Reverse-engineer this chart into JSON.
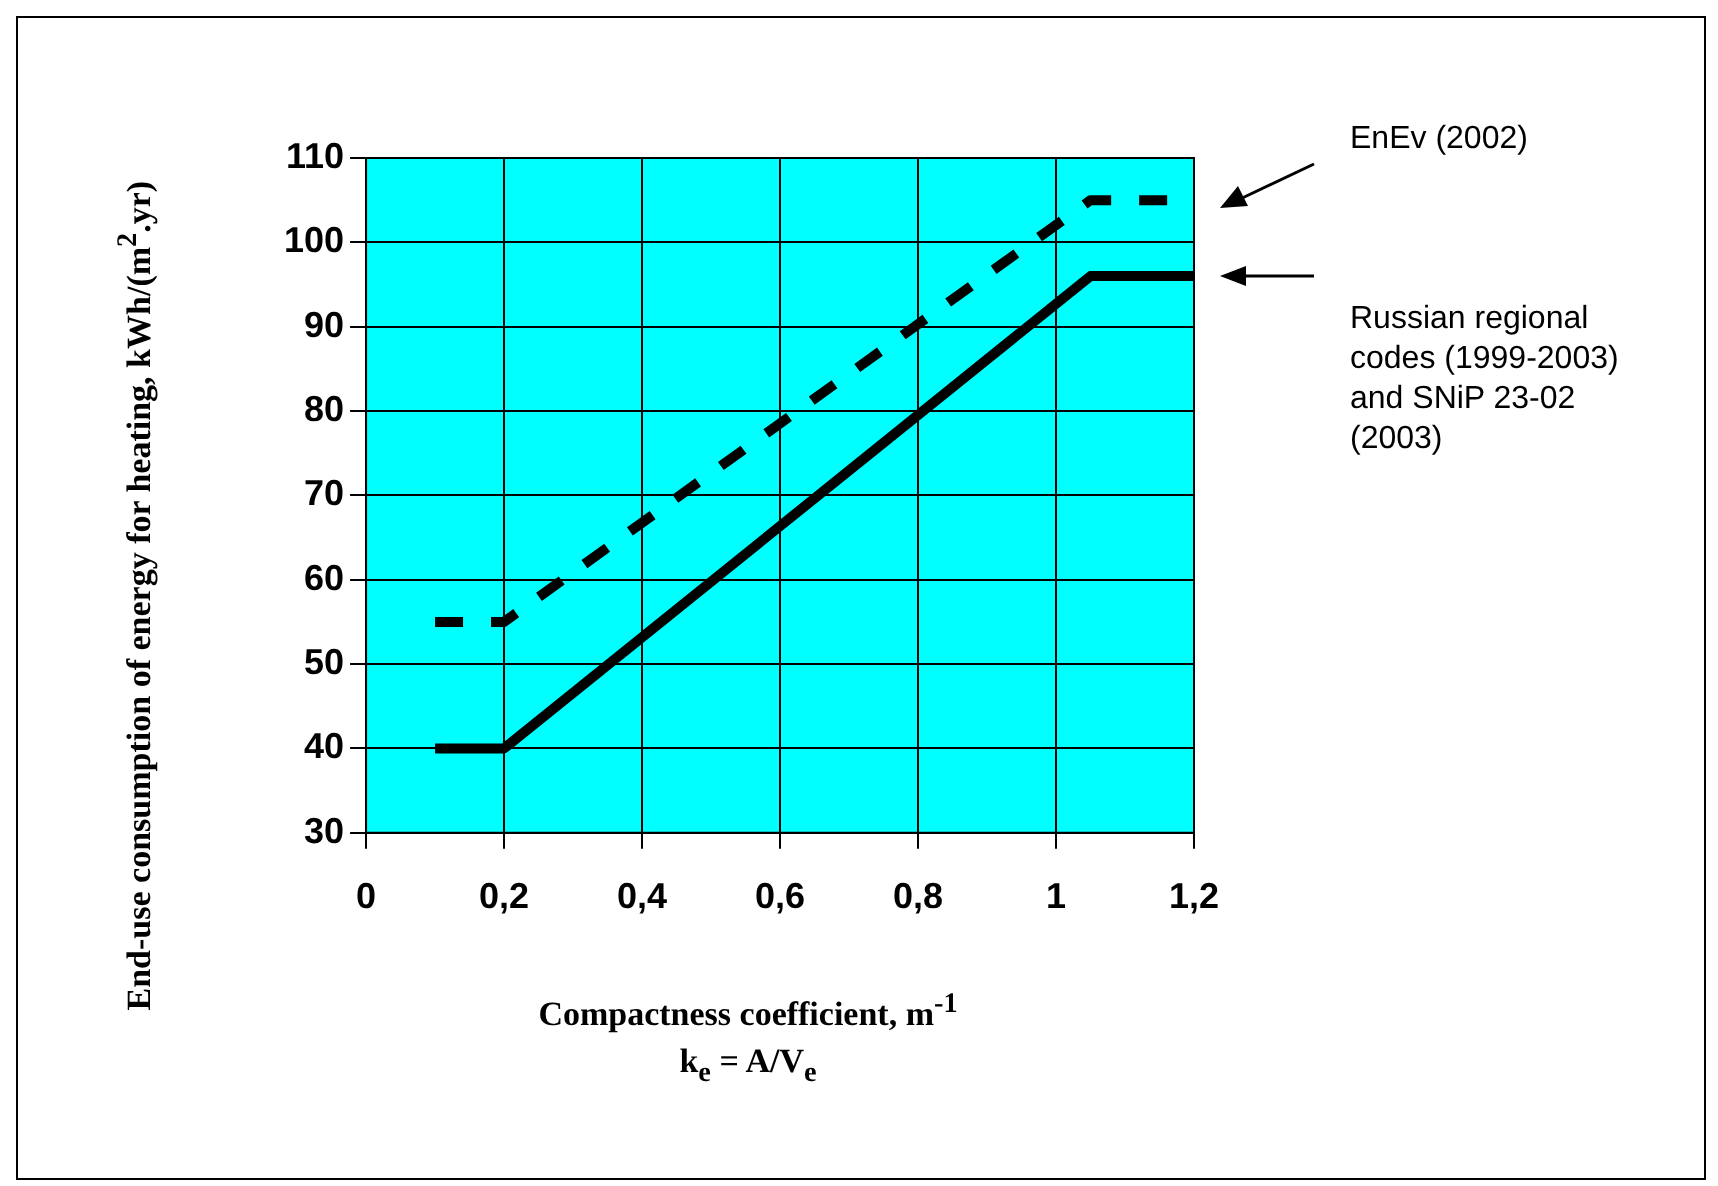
{
  "chart_data": {
    "type": "line",
    "xlabel": "Compactness coefficient, m$^{-1}$",
    "ylabel": "End-use consumption of energy for heating, kWh/(m$^{2}$.yr)",
    "annotations": [
      "k$_{e}$ = A/V$_{e}$"
    ],
    "series": [
      {
        "name": "EnEv (2002)",
        "color": "#000000",
        "line_style": "dashed",
        "x": [
          0.1,
          0.2,
          1.05,
          1.2
        ],
        "values": [
          55,
          55,
          105,
          105
        ]
      },
      {
        "name": "Russian regional codes (1999-2003) and SNiP 23-02 (2003)",
        "color": "#000000",
        "line_style": "solid",
        "x": [
          0.1,
          0.2,
          1.05,
          1.2
        ],
        "values": [
          40,
          40,
          96,
          96
        ]
      }
    ],
    "xlim": [
      0,
      1.2
    ],
    "xticks": [
      0,
      {
        "value": 0.2,
        "label": "0,2"
      },
      {
        "value": 0.4,
        "label": "0,4"
      },
      {
        "value": 0.6,
        "label": "0,6"
      },
      {
        "value": 0.8,
        "label": "0,8"
      },
      1,
      {
        "value": 1.2,
        "label": "1,2"
      }
    ],
    "ylim": [
      30,
      110
    ],
    "yticks": [
      30,
      40,
      50,
      60,
      70,
      80,
      90,
      100,
      110
    ],
    "grid": true,
    "legend": false,
    "marker": "none"
  }
}
